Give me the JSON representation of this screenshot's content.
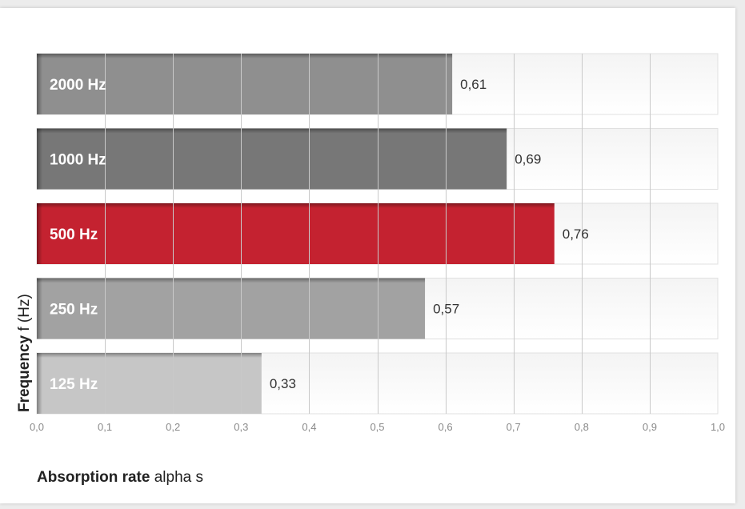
{
  "chart_data": {
    "type": "bar",
    "orientation": "horizontal",
    "categories": [
      "2000 Hz",
      "1000 Hz",
      "500 Hz",
      "250 Hz",
      "125 Hz"
    ],
    "values": [
      0.61,
      0.69,
      0.76,
      0.57,
      0.33
    ],
    "value_labels": [
      "0,61",
      "0,69",
      "0,76",
      "0,57",
      "0,33"
    ],
    "bar_colors": [
      "#8f8f8f",
      "#777777",
      "#c42230",
      "#a2a2a2",
      "#c6c6c6"
    ],
    "xlim": [
      0,
      1
    ],
    "x_ticks": [
      0,
      0.1,
      0.2,
      0.3,
      0.4,
      0.5,
      0.6,
      0.7,
      0.8,
      0.9,
      1.0
    ],
    "x_tick_labels": [
      "0,0",
      "0,1",
      "0,2",
      "0,3",
      "0,4",
      "0,5",
      "0,6",
      "0,7",
      "0,8",
      "0,9",
      "1,0"
    ],
    "xlabel": {
      "bold": "Absorption rate",
      "normal": " alpha s"
    },
    "ylabel": {
      "bold": "Frequency",
      "normal": " f (Hz)"
    },
    "grid": true,
    "legend": "none"
  }
}
